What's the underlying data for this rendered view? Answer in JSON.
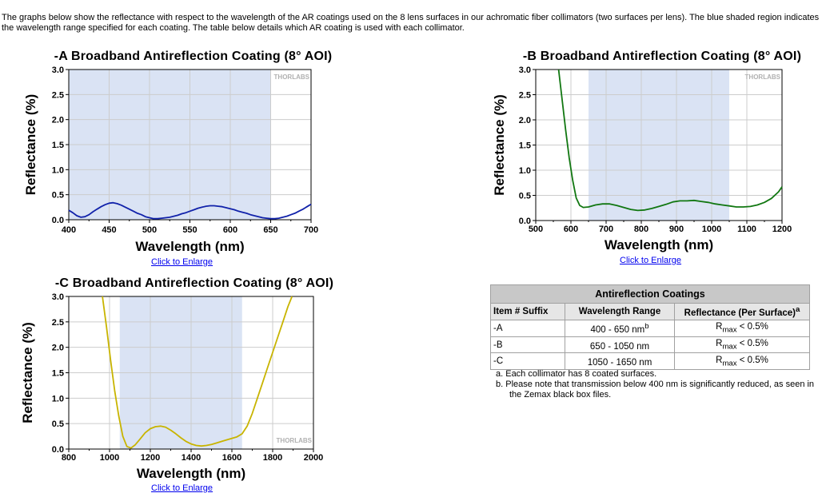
{
  "intro": "The graphs below show the reflectance with respect to the wavelength of the AR coatings used on the 8 lens surfaces in our achromatic fiber collimators (two surfaces per lens). The blue shaded region indicates the wavelength range specified for each coating. The table below details which AR coating is used with each collimator.",
  "enlarge_label": "Click to Enlarge",
  "watermark": "THORLABS",
  "colors": {
    "shade": "#dae3f4",
    "grid": "#cccccc"
  },
  "chart_data": [
    {
      "type": "line",
      "title": "-A Broadband Antireflection Coating (8° AOI)",
      "xlabel": "Wavelength (nm)",
      "ylabel": "Reflectance (%)",
      "xlim": [
        400,
        700
      ],
      "ylim": [
        0,
        3
      ],
      "xticks": [
        "400",
        "450",
        "500",
        "550",
        "600",
        "650",
        "700"
      ],
      "yticks": [
        "0.0",
        "0.5",
        "1.0",
        "1.5",
        "2.0",
        "2.5",
        "3.0"
      ],
      "shaded_range": [
        400,
        650
      ],
      "line_color": "#1122aa",
      "grid": true,
      "series": [
        {
          "points": [
            [
              400,
              0.19
            ],
            [
              405,
              0.14
            ],
            [
              410,
              0.08
            ],
            [
              415,
              0.05
            ],
            [
              420,
              0.06
            ],
            [
              425,
              0.1
            ],
            [
              430,
              0.16
            ],
            [
              435,
              0.21
            ],
            [
              440,
              0.26
            ],
            [
              445,
              0.3
            ],
            [
              450,
              0.33
            ],
            [
              455,
              0.34
            ],
            [
              460,
              0.32
            ],
            [
              465,
              0.29
            ],
            [
              470,
              0.25
            ],
            [
              475,
              0.21
            ],
            [
              480,
              0.17
            ],
            [
              485,
              0.13
            ],
            [
              490,
              0.1
            ],
            [
              495,
              0.06
            ],
            [
              500,
              0.04
            ],
            [
              505,
              0.02
            ],
            [
              510,
              0.02
            ],
            [
              515,
              0.03
            ],
            [
              520,
              0.04
            ],
            [
              525,
              0.05
            ],
            [
              530,
              0.07
            ],
            [
              535,
              0.09
            ],
            [
              540,
              0.12
            ],
            [
              545,
              0.14
            ],
            [
              550,
              0.17
            ],
            [
              555,
              0.2
            ],
            [
              560,
              0.23
            ],
            [
              565,
              0.25
            ],
            [
              570,
              0.27
            ],
            [
              575,
              0.28
            ],
            [
              580,
              0.28
            ],
            [
              585,
              0.27
            ],
            [
              590,
              0.26
            ],
            [
              595,
              0.24
            ],
            [
              600,
              0.22
            ],
            [
              605,
              0.2
            ],
            [
              610,
              0.17
            ],
            [
              615,
              0.15
            ],
            [
              620,
              0.13
            ],
            [
              625,
              0.1
            ],
            [
              630,
              0.08
            ],
            [
              635,
              0.06
            ],
            [
              640,
              0.04
            ],
            [
              645,
              0.03
            ],
            [
              650,
              0.02
            ],
            [
              655,
              0.02
            ],
            [
              660,
              0.03
            ],
            [
              665,
              0.05
            ],
            [
              670,
              0.07
            ],
            [
              675,
              0.1
            ],
            [
              680,
              0.13
            ],
            [
              685,
              0.17
            ],
            [
              690,
              0.21
            ],
            [
              695,
              0.26
            ],
            [
              700,
              0.31
            ]
          ]
        }
      ]
    },
    {
      "type": "line",
      "title": "-B Broadband Antireflection Coating (8° AOI)",
      "xlabel": "Wavelength (nm)",
      "ylabel": "Reflectance (%)",
      "xlim": [
        500,
        1200
      ],
      "ylim": [
        0,
        3
      ],
      "xticks": [
        "500",
        "600",
        "700",
        "800",
        "900",
        "1000",
        "1100",
        "1200"
      ],
      "yticks": [
        "0.0",
        "0.5",
        "1.0",
        "1.5",
        "2.0",
        "2.5",
        "3.0"
      ],
      "shaded_range": [
        650,
        1050
      ],
      "line_color": "#117711",
      "grid": true,
      "series": [
        {
          "points": [
            [
              565,
              3.0
            ],
            [
              575,
              2.4
            ],
            [
              585,
              1.8
            ],
            [
              595,
              1.25
            ],
            [
              605,
              0.8
            ],
            [
              615,
              0.45
            ],
            [
              625,
              0.3
            ],
            [
              635,
              0.26
            ],
            [
              650,
              0.27
            ],
            [
              670,
              0.31
            ],
            [
              690,
              0.33
            ],
            [
              710,
              0.33
            ],
            [
              730,
              0.3
            ],
            [
              750,
              0.26
            ],
            [
              770,
              0.22
            ],
            [
              790,
              0.2
            ],
            [
              810,
              0.21
            ],
            [
              830,
              0.24
            ],
            [
              850,
              0.28
            ],
            [
              870,
              0.32
            ],
            [
              890,
              0.37
            ],
            [
              910,
              0.39
            ],
            [
              930,
              0.39
            ],
            [
              950,
              0.4
            ],
            [
              970,
              0.38
            ],
            [
              990,
              0.36
            ],
            [
              1010,
              0.33
            ],
            [
              1030,
              0.31
            ],
            [
              1050,
              0.29
            ],
            [
              1070,
              0.27
            ],
            [
              1090,
              0.27
            ],
            [
              1110,
              0.28
            ],
            [
              1130,
              0.31
            ],
            [
              1150,
              0.36
            ],
            [
              1170,
              0.44
            ],
            [
              1190,
              0.57
            ],
            [
              1200,
              0.67
            ]
          ]
        }
      ]
    },
    {
      "type": "line",
      "title": "-C Broadband Antireflection Coating (8° AOI)",
      "xlabel": "Wavelength (nm)",
      "ylabel": "Reflectance (%)",
      "xlim": [
        800,
        2000
      ],
      "ylim": [
        0,
        3
      ],
      "xticks": [
        "800",
        "1000",
        "1200",
        "1400",
        "1600",
        "1800",
        "2000"
      ],
      "yticks": [
        "0.0",
        "0.5",
        "1.0",
        "1.5",
        "2.0",
        "2.5",
        "3.0"
      ],
      "shaded_range": [
        1050,
        1650
      ],
      "line_color": "#c8b400",
      "grid": true,
      "series": [
        {
          "points": [
            [
              965,
              3.0
            ],
            [
              985,
              2.4
            ],
            [
              1005,
              1.75
            ],
            [
              1025,
              1.15
            ],
            [
              1045,
              0.65
            ],
            [
              1065,
              0.25
            ],
            [
              1085,
              0.05
            ],
            [
              1105,
              0.02
            ],
            [
              1125,
              0.08
            ],
            [
              1150,
              0.2
            ],
            [
              1175,
              0.32
            ],
            [
              1200,
              0.4
            ],
            [
              1225,
              0.44
            ],
            [
              1250,
              0.45
            ],
            [
              1275,
              0.43
            ],
            [
              1300,
              0.37
            ],
            [
              1325,
              0.3
            ],
            [
              1350,
              0.22
            ],
            [
              1375,
              0.15
            ],
            [
              1400,
              0.1
            ],
            [
              1425,
              0.07
            ],
            [
              1450,
              0.06
            ],
            [
              1475,
              0.07
            ],
            [
              1500,
              0.09
            ],
            [
              1525,
              0.12
            ],
            [
              1550,
              0.15
            ],
            [
              1575,
              0.18
            ],
            [
              1600,
              0.21
            ],
            [
              1625,
              0.24
            ],
            [
              1650,
              0.3
            ],
            [
              1675,
              0.45
            ],
            [
              1700,
              0.7
            ],
            [
              1725,
              1.0
            ],
            [
              1750,
              1.3
            ],
            [
              1775,
              1.6
            ],
            [
              1800,
              1.9
            ],
            [
              1825,
              2.2
            ],
            [
              1850,
              2.5
            ],
            [
              1875,
              2.8
            ],
            [
              1895,
              3.0
            ]
          ]
        }
      ]
    }
  ],
  "table": {
    "caption": "Antireflection Coatings",
    "headers": [
      "Item # Suffix",
      "Wavelength Range",
      "Reflectance (Per Surface)",
      "a"
    ],
    "rows": [
      {
        "suffix": "-A",
        "range": "400 - 650 nm",
        "range_sup": "b",
        "r": "R",
        "r_sub": "max",
        "r_val": " < 0.5%"
      },
      {
        "suffix": "-B",
        "range": "650 - 1050 nm",
        "range_sup": "",
        "r": "R",
        "r_sub": "max",
        "r_val": " < 0.5%"
      },
      {
        "suffix": "-C",
        "range": "1050 - 1650 nm",
        "range_sup": "",
        "r": "R",
        "r_sub": "max",
        "r_val": " < 0.5%"
      }
    ]
  },
  "notes": [
    "a. Each collimator has 8 coated surfaces.",
    "b. Please note that transmission below 400 nm is significantly reduced, as seen in the Zemax black box files."
  ]
}
